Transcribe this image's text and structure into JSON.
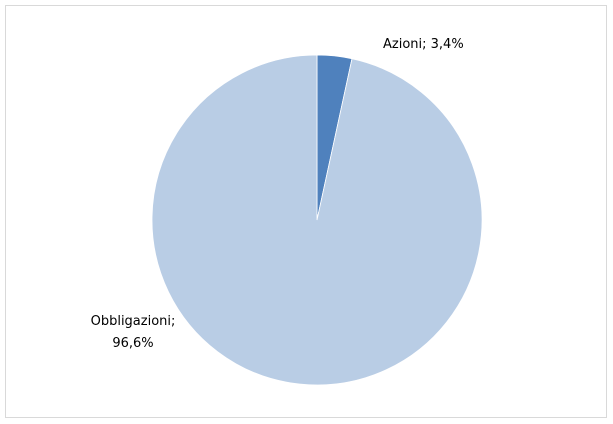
{
  "chart_data": {
    "type": "pie",
    "values": [
      3.4,
      96.6
    ],
    "value_labels": [
      "Azioni; 3,4%",
      "Obbligazioni; 96,6%"
    ],
    "colors": [
      "#4f81bd",
      "#b9cde5"
    ],
    "start_angle": 0,
    "direction": "clockwise"
  }
}
